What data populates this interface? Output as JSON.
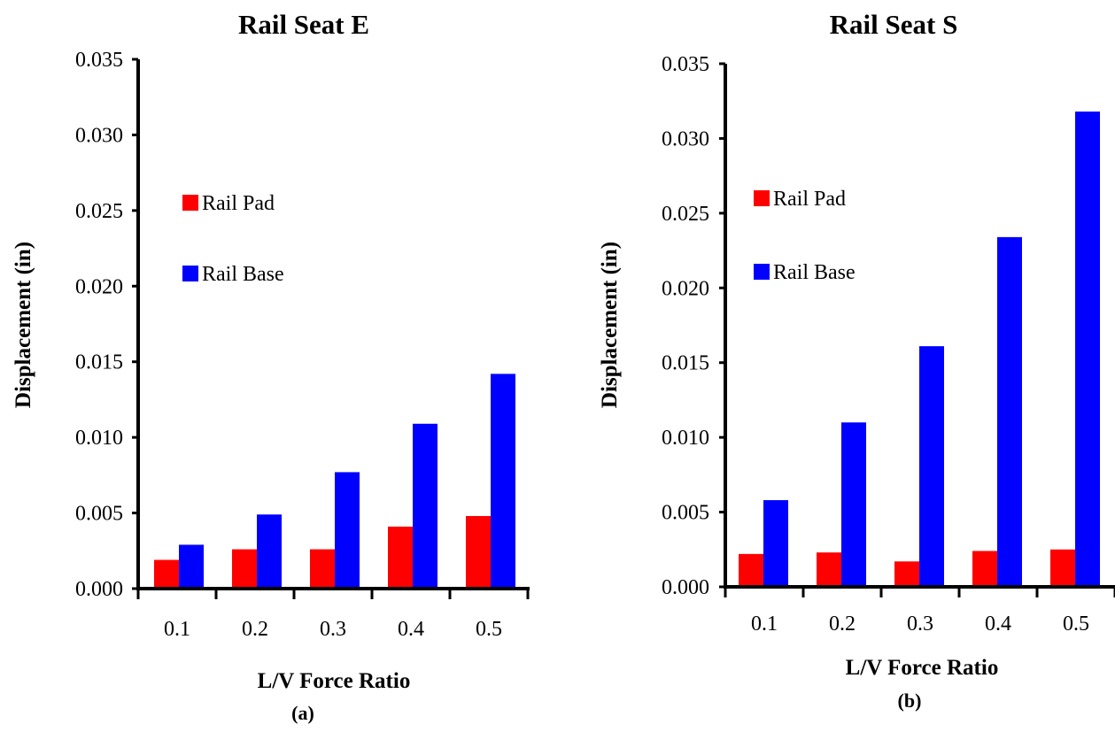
{
  "chart_data": [
    {
      "type": "bar",
      "title": "Rail Seat E",
      "xlabel": "L/V Force Ratio",
      "ylabel": "Displacement (in)",
      "caption": "(a)",
      "categories": [
        "0.1",
        "0.2",
        "0.3",
        "0.4",
        "0.5"
      ],
      "yticks": [
        "0.000",
        "0.005",
        "0.010",
        "0.015",
        "0.020",
        "0.025",
        "0.030",
        "0.035"
      ],
      "ylim": [
        0,
        0.035
      ],
      "grid": false,
      "legend_position": "upper-left",
      "series": [
        {
          "name": "Rail Pad",
          "color": "#ff0000",
          "values": [
            0.0019,
            0.0026,
            0.0026,
            0.0041,
            0.0048
          ]
        },
        {
          "name": "Rail Base",
          "color": "#0000ff",
          "values": [
            0.0029,
            0.0049,
            0.0077,
            0.0109,
            0.0142
          ]
        }
      ]
    },
    {
      "type": "bar",
      "title": "Rail Seat S",
      "xlabel": "L/V Force Ratio",
      "ylabel": "Displacement (in)",
      "caption": "(b)",
      "categories": [
        "0.1",
        "0.2",
        "0.3",
        "0.4",
        "0.5"
      ],
      "yticks": [
        "0.000",
        "0.005",
        "0.010",
        "0.015",
        "0.020",
        "0.025",
        "0.030",
        "0.035"
      ],
      "ylim": [
        0,
        0.035
      ],
      "grid": false,
      "legend_position": "upper-left",
      "series": [
        {
          "name": "Rail Pad",
          "color": "#ff0000",
          "values": [
            0.0022,
            0.0023,
            0.0017,
            0.0024,
            0.0025
          ]
        },
        {
          "name": "Rail Base",
          "color": "#0000ff",
          "values": [
            0.0058,
            0.011,
            0.0161,
            0.0234,
            0.0318
          ]
        }
      ]
    }
  ]
}
